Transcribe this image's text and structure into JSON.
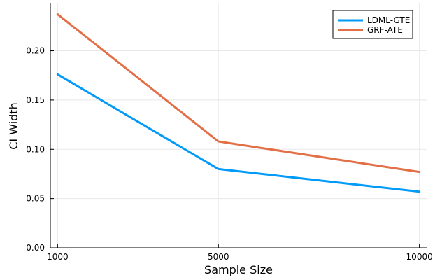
{
  "chart_data": {
    "type": "line",
    "title": "",
    "xlabel": "Sample Size",
    "ylabel": "CI Width",
    "x": [
      1000,
      5000,
      10000
    ],
    "xticks": [
      "1000",
      "5000",
      "10000"
    ],
    "yticks": [
      "0.00",
      "0.05",
      "0.10",
      "0.15",
      "0.20"
    ],
    "xlim": [
      820,
      10180
    ],
    "ylim": [
      0,
      0.248
    ],
    "grid": true,
    "legend_position": "top-right",
    "series": [
      {
        "name": "LDML-GTE",
        "color": "#009af9",
        "values": [
          0.176,
          0.08,
          0.057
        ]
      },
      {
        "name": "GRF-ATE",
        "color": "#e26f46",
        "values": [
          0.237,
          0.108,
          0.077
        ]
      }
    ]
  }
}
